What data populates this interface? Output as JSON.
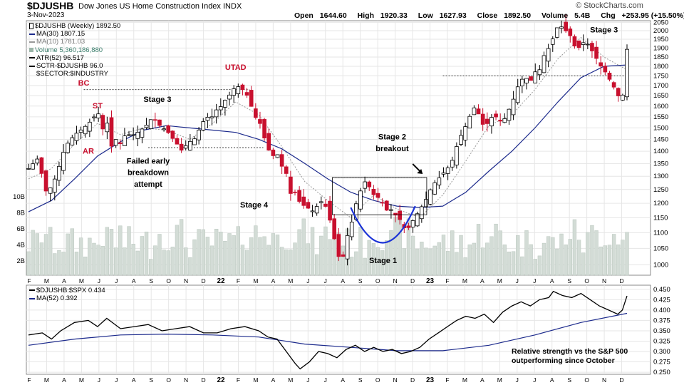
{
  "header": {
    "ticker": "$DJUSHB",
    "name": "Dow Jones US Home Construction Index",
    "exchange": "INDX",
    "date": "3-Nov-2023",
    "brand": "© StockCharts.com",
    "ohlc": [
      {
        "label": "Open",
        "value": "1644.60"
      },
      {
        "label": "High",
        "value": "1920.33"
      },
      {
        "label": "Low",
        "value": "1627.93"
      },
      {
        "label": "Close",
        "value": "1892.50"
      },
      {
        "label": "Volume",
        "value": "5.4B"
      },
      {
        "label": "Chg",
        "value": "+253.95 (+15.50%)"
      }
    ]
  },
  "legend_main": [
    {
      "text": "$DJUSHB (Weekly) 1892.50",
      "icon": "candle-icon",
      "color": "#000000"
    },
    {
      "text": "MA(30) 1807.15",
      "icon": "line-swatch",
      "color": "#1c2a8c"
    },
    {
      "text": "MA(10) 1781.03",
      "icon": "line-swatch",
      "color": "#999999"
    },
    {
      "text": "Volume 5,360,186,880",
      "icon": "volume-swatch",
      "color": "#3a7d6b"
    },
    {
      "text": "ATR(52) 96.517",
      "icon": "line-swatch",
      "color": "#000000"
    },
    {
      "text": "SCTR-$DJUSHB 96.0",
      "icon": "line-swatch",
      "color": "#000000"
    },
    {
      "text": "$SECTOR:$INDUSTRY",
      "icon": "",
      "color": "#000000"
    }
  ],
  "legend_lower": [
    {
      "text": "$DJUSHB:$SPX 0.434",
      "icon": "line-swatch",
      "color": "#000000"
    },
    {
      "text": "MA(52) 0.392",
      "icon": "line-swatch",
      "color": "#1c2a8c"
    }
  ],
  "colors": {
    "up": "#000000",
    "down": "#c8102e",
    "volume": "#d3dcd6",
    "volume_edge": "#b9c6bd",
    "ma30": "#1c2a8c",
    "ma10": "#999999",
    "annotation": "#000000",
    "wyckoff": "#c8102e",
    "cup": "#1a32d6",
    "grid": "#e6e6e6"
  },
  "chart_data": [
    {
      "type": "candlestick",
      "x_axis": [
        "F",
        "M",
        "A",
        "M",
        "J",
        "J",
        "A",
        "S",
        "O",
        "N",
        "D",
        "22",
        "F",
        "M",
        "A",
        "M",
        "J",
        "J",
        "A",
        "S",
        "O",
        "N",
        "D",
        "23",
        "F",
        "M",
        "A",
        "M",
        "J",
        "J",
        "A",
        "S",
        "O",
        "N",
        "D"
      ],
      "y_ticks": [
        1000,
        1050,
        1100,
        1150,
        1200,
        1250,
        1300,
        1350,
        1400,
        1450,
        1500,
        1550,
        1600,
        1650,
        1700,
        1750,
        1800,
        1850,
        1900,
        1950,
        2000,
        2050
      ],
      "volume_ticks": [
        "2B",
        "4B",
        "6B",
        "8B",
        "10B"
      ],
      "close_path": [
        [
          0,
          1330
        ],
        [
          4,
          1370
        ],
        [
          8,
          1230
        ],
        [
          12,
          1300
        ],
        [
          16,
          1420
        ],
        [
          20,
          1470
        ],
        [
          24,
          1500
        ],
        [
          28,
          1540
        ],
        [
          30,
          1580
        ],
        [
          32,
          1490
        ],
        [
          34,
          1530
        ],
        [
          36,
          1420
        ],
        [
          38,
          1450
        ],
        [
          40,
          1430
        ],
        [
          42,
          1470
        ],
        [
          46,
          1470
        ],
        [
          50,
          1500
        ],
        [
          52,
          1520
        ],
        [
          54,
          1550
        ],
        [
          56,
          1520
        ],
        [
          58,
          1500
        ],
        [
          60,
          1490
        ],
        [
          62,
          1460
        ],
        [
          64,
          1440
        ],
        [
          66,
          1400
        ],
        [
          68,
          1420
        ],
        [
          70,
          1440
        ],
        [
          72,
          1450
        ],
        [
          74,
          1490
        ],
        [
          76,
          1530
        ],
        [
          78,
          1550
        ],
        [
          80,
          1550
        ],
        [
          82,
          1590
        ],
        [
          84,
          1600
        ],
        [
          86,
          1640
        ],
        [
          88,
          1660
        ],
        [
          90,
          1700
        ],
        [
          92,
          1690
        ],
        [
          94,
          1670
        ],
        [
          96,
          1630
        ],
        [
          98,
          1550
        ],
        [
          100,
          1540
        ],
        [
          102,
          1470
        ],
        [
          104,
          1410
        ],
        [
          106,
          1380
        ],
        [
          108,
          1390
        ],
        [
          110,
          1340
        ],
        [
          112,
          1310
        ],
        [
          114,
          1230
        ],
        [
          116,
          1240
        ],
        [
          118,
          1200
        ],
        [
          120,
          1190
        ],
        [
          122,
          1180
        ],
        [
          124,
          1170
        ],
        [
          126,
          1200
        ],
        [
          128,
          1210
        ],
        [
          130,
          1170
        ],
        [
          132,
          1110
        ],
        [
          134,
          1040
        ],
        [
          136,
          1000
        ],
        [
          138,
          1080
        ],
        [
          140,
          1120
        ],
        [
          142,
          1190
        ],
        [
          144,
          1240
        ],
        [
          146,
          1280
        ],
        [
          148,
          1260
        ],
        [
          150,
          1230
        ],
        [
          152,
          1220
        ],
        [
          154,
          1200
        ],
        [
          156,
          1170
        ],
        [
          158,
          1180
        ],
        [
          160,
          1150
        ],
        [
          162,
          1140
        ],
        [
          164,
          1100
        ],
        [
          166,
          1130
        ],
        [
          168,
          1150
        ],
        [
          170,
          1180
        ],
        [
          172,
          1200
        ],
        [
          174,
          1240
        ],
        [
          176,
          1270
        ],
        [
          178,
          1290
        ],
        [
          180,
          1310
        ],
        [
          182,
          1330
        ],
        [
          184,
          1360
        ],
        [
          186,
          1420
        ],
        [
          188,
          1470
        ],
        [
          190,
          1510
        ],
        [
          192,
          1560
        ],
        [
          194,
          1600
        ],
        [
          196,
          1550
        ],
        [
          198,
          1500
        ],
        [
          200,
          1530
        ],
        [
          202,
          1560
        ],
        [
          204,
          1540
        ],
        [
          206,
          1520
        ],
        [
          208,
          1570
        ],
        [
          210,
          1610
        ],
        [
          212,
          1680
        ],
        [
          214,
          1730
        ],
        [
          216,
          1740
        ],
        [
          218,
          1720
        ],
        [
          220,
          1770
        ],
        [
          222,
          1780
        ],
        [
          224,
          1860
        ],
        [
          226,
          1900
        ],
        [
          228,
          1960
        ],
        [
          230,
          2030
        ],
        [
          232,
          2020
        ],
        [
          234,
          1990
        ],
        [
          236,
          1960
        ],
        [
          238,
          1880
        ],
        [
          240,
          1920
        ],
        [
          242,
          1940
        ],
        [
          244,
          1900
        ],
        [
          246,
          1860
        ],
        [
          248,
          1810
        ],
        [
          250,
          1780
        ],
        [
          252,
          1740
        ],
        [
          254,
          1700
        ],
        [
          256,
          1650
        ],
        [
          258,
          1640
        ],
        [
          260,
          1892.5
        ]
      ],
      "ma30_path": [
        [
          0,
          1170
        ],
        [
          10,
          1210
        ],
        [
          20,
          1290
        ],
        [
          30,
          1380
        ],
        [
          40,
          1440
        ],
        [
          50,
          1490
        ],
        [
          60,
          1510
        ],
        [
          70,
          1500
        ],
        [
          80,
          1490
        ],
        [
          90,
          1480
        ],
        [
          100,
          1450
        ],
        [
          110,
          1410
        ],
        [
          120,
          1350
        ],
        [
          130,
          1290
        ],
        [
          140,
          1240
        ],
        [
          150,
          1210
        ],
        [
          160,
          1190
        ],
        [
          170,
          1185
        ],
        [
          180,
          1190
        ],
        [
          190,
          1240
        ],
        [
          200,
          1320
        ],
        [
          210,
          1400
        ],
        [
          220,
          1500
        ],
        [
          230,
          1620
        ],
        [
          240,
          1740
        ],
        [
          250,
          1800
        ],
        [
          260,
          1807.15
        ]
      ],
      "ma10_path": [
        [
          0,
          1290
        ],
        [
          10,
          1330
        ],
        [
          20,
          1430
        ],
        [
          30,
          1520
        ],
        [
          40,
          1470
        ],
        [
          50,
          1500
        ],
        [
          60,
          1490
        ],
        [
          70,
          1450
        ],
        [
          80,
          1520
        ],
        [
          90,
          1620
        ],
        [
          100,
          1560
        ],
        [
          110,
          1420
        ],
        [
          120,
          1280
        ],
        [
          130,
          1210
        ],
        [
          140,
          1150
        ],
        [
          150,
          1230
        ],
        [
          160,
          1180
        ],
        [
          170,
          1150
        ],
        [
          180,
          1230
        ],
        [
          190,
          1360
        ],
        [
          200,
          1510
        ],
        [
          210,
          1560
        ],
        [
          220,
          1680
        ],
        [
          230,
          1840
        ],
        [
          240,
          1960
        ],
        [
          250,
          1850
        ],
        [
          260,
          1781.03
        ]
      ],
      "x_min": 0,
      "x_max": 260,
      "y_min": 970,
      "y_max": 2060,
      "y_scale": "log",
      "last_bar": {
        "open": 1644.6,
        "high": 1920.33,
        "low": 1627.93,
        "close": 1892.5
      },
      "horizontal_levels": [
        {
          "value": 1680,
          "x_start": 24,
          "x_end": 96
        },
        {
          "value": 1415,
          "x_start": 52,
          "x_end": 102
        },
        {
          "value": 1750,
          "x_start": 180,
          "x_end": 260
        },
        {
          "value": 1295,
          "x_start": 132,
          "x_end": 173
        }
      ],
      "annotations": [
        {
          "text": "BC",
          "x": 24,
          "y": 1700,
          "style": "wyckoff"
        },
        {
          "text": "ST",
          "x": 30,
          "y": 1590,
          "style": "wyckoff"
        },
        {
          "text": "AR",
          "x": 26,
          "y": 1390,
          "style": "wyckoff"
        },
        {
          "text": "UTAD",
          "x": 90,
          "y": 1780,
          "style": "wyckoff"
        },
        {
          "text": "Stage 3",
          "x": 56,
          "y": 1620,
          "style": "plain"
        },
        {
          "text": "Failed early",
          "x": 52,
          "y": 1350,
          "style": "plain"
        },
        {
          "text": "breakdown",
          "x": 52,
          "y": 1305,
          "style": "plain"
        },
        {
          "text": "attempt",
          "x": 52,
          "y": 1260,
          "style": "plain"
        },
        {
          "text": "Stage 4",
          "x": 98,
          "y": 1185,
          "style": "plain"
        },
        {
          "text": "Stage 2",
          "x": 158,
          "y": 1450,
          "style": "plain"
        },
        {
          "text": "breakout",
          "x": 158,
          "y": 1400,
          "style": "plain"
        },
        {
          "text": "Stage 1",
          "x": 154,
          "y": 1005,
          "style": "plain"
        },
        {
          "text": "Stage 3",
          "x": 250,
          "y": 1990,
          "style": "plain"
        }
      ]
    },
    {
      "type": "line",
      "title": "$DJUSHB:$SPX",
      "y_ticks": [
        0.25,
        0.275,
        0.3,
        0.325,
        0.35,
        0.375,
        0.4,
        0.425,
        0.45
      ],
      "y_min": 0.245,
      "y_max": 0.46,
      "ratio_path": [
        [
          0,
          0.34
        ],
        [
          6,
          0.345
        ],
        [
          10,
          0.33
        ],
        [
          14,
          0.35
        ],
        [
          20,
          0.37
        ],
        [
          26,
          0.375
        ],
        [
          30,
          0.36
        ],
        [
          34,
          0.38
        ],
        [
          40,
          0.355
        ],
        [
          46,
          0.36
        ],
        [
          52,
          0.365
        ],
        [
          58,
          0.35
        ],
        [
          64,
          0.355
        ],
        [
          70,
          0.36
        ],
        [
          76,
          0.345
        ],
        [
          82,
          0.345
        ],
        [
          88,
          0.355
        ],
        [
          94,
          0.36
        ],
        [
          100,
          0.35
        ],
        [
          104,
          0.335
        ],
        [
          108,
          0.33
        ],
        [
          112,
          0.3
        ],
        [
          116,
          0.27
        ],
        [
          118,
          0.258
        ],
        [
          122,
          0.275
        ],
        [
          126,
          0.3
        ],
        [
          130,
          0.295
        ],
        [
          134,
          0.285
        ],
        [
          138,
          0.305
        ],
        [
          142,
          0.315
        ],
        [
          146,
          0.3
        ],
        [
          150,
          0.31
        ],
        [
          154,
          0.3
        ],
        [
          158,
          0.305
        ],
        [
          162,
          0.295
        ],
        [
          166,
          0.3
        ],
        [
          170,
          0.31
        ],
        [
          174,
          0.33
        ],
        [
          178,
          0.345
        ],
        [
          182,
          0.36
        ],
        [
          186,
          0.375
        ],
        [
          190,
          0.385
        ],
        [
          194,
          0.38
        ],
        [
          198,
          0.39
        ],
        [
          202,
          0.37
        ],
        [
          206,
          0.395
        ],
        [
          210,
          0.41
        ],
        [
          214,
          0.42
        ],
        [
          218,
          0.41
        ],
        [
          222,
          0.425
        ],
        [
          226,
          0.43
        ],
        [
          228,
          0.445
        ],
        [
          232,
          0.435
        ],
        [
          236,
          0.43
        ],
        [
          240,
          0.44
        ],
        [
          244,
          0.425
        ],
        [
          248,
          0.41
        ],
        [
          252,
          0.4
        ],
        [
          256,
          0.39
        ],
        [
          258,
          0.4
        ],
        [
          260,
          0.434
        ]
      ],
      "ma52_path": [
        [
          0,
          0.315
        ],
        [
          20,
          0.33
        ],
        [
          40,
          0.34
        ],
        [
          60,
          0.342
        ],
        [
          80,
          0.34
        ],
        [
          100,
          0.335
        ],
        [
          120,
          0.318
        ],
        [
          140,
          0.31
        ],
        [
          160,
          0.302
        ],
        [
          180,
          0.302
        ],
        [
          200,
          0.315
        ],
        [
          220,
          0.34
        ],
        [
          240,
          0.37
        ],
        [
          260,
          0.392
        ]
      ],
      "annotation_lines": [
        "Relative strength vs the S&P 500",
        "outperforming since October"
      ]
    }
  ]
}
